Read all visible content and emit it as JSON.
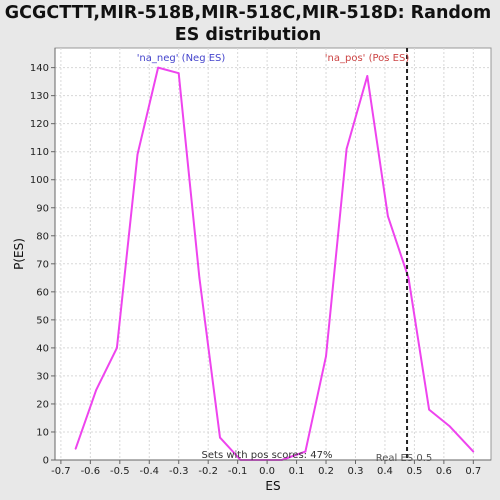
{
  "chart_data": {
    "type": "line",
    "title_lines": [
      "GCGCTTT,MIR-518B,MIR-518C,MIR-518D: Random",
      "ES distribution"
    ],
    "xlabel": "ES",
    "ylabel": "P(ES)",
    "xlim": [
      -0.72,
      0.76
    ],
    "ylim": [
      0,
      147
    ],
    "x_ticks": [
      -0.7,
      -0.6,
      -0.5,
      -0.4,
      -0.3,
      -0.2,
      -0.1,
      0.0,
      0.1,
      0.2,
      0.3,
      0.4,
      0.5,
      0.6,
      0.7
    ],
    "x_tick_labels": [
      "-0.7",
      "-0.6",
      "-0.5",
      "-0.4",
      "-0.3",
      "-0.2",
      "-0.1",
      "0.0",
      "0.1",
      "0.2",
      "0.3",
      "0.4",
      "0.5",
      "0.6",
      "0.7"
    ],
    "y_ticks": [
      0,
      10,
      20,
      30,
      40,
      50,
      60,
      70,
      80,
      90,
      100,
      110,
      120,
      130,
      140
    ],
    "y_tick_labels": [
      "0",
      "10",
      "20",
      "30",
      "40",
      "50",
      "60",
      "70",
      "80",
      "90",
      "100",
      "110",
      "120",
      "130",
      "140"
    ],
    "grid": true,
    "series": [
      {
        "x": [
          -0.65,
          -0.58,
          -0.51,
          -0.44,
          -0.37,
          -0.3,
          -0.23,
          -0.16,
          -0.09,
          -0.02,
          0.05,
          0.13,
          0.2,
          0.27,
          0.34,
          0.41,
          0.48,
          0.55,
          0.62,
          0.7
        ],
        "y": [
          4,
          25,
          40,
          109,
          140,
          138,
          65,
          8,
          0,
          0,
          0,
          3,
          37,
          111,
          137,
          87,
          65,
          18,
          12,
          3
        ],
        "color": "#ee44ee"
      }
    ],
    "reference_line": {
      "x": 0.475,
      "label": "Real ES 0.5",
      "color": "#222222"
    },
    "annotations": {
      "neg_label": "'na_neg' (Neg ES)",
      "pos_label": "'na_pos' (Pos ES)",
      "pos_scores": "Sets with pos scores: 47%"
    },
    "colors": {
      "neg": "#4444cc",
      "pos": "#cc4444",
      "background": "#e8e8e8",
      "plot_bg": "#ffffff",
      "grid": "#d8d8d8"
    }
  }
}
